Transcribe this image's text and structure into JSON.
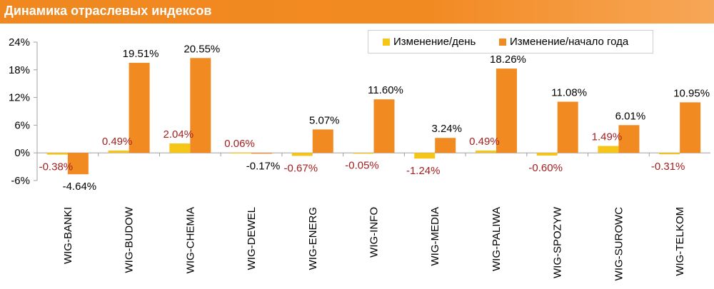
{
  "header": {
    "title": "Динамика отраслевых индексов"
  },
  "colors": {
    "daily": "#f5c518",
    "ytd": "#f28a22",
    "daily_label": "#a21f1f",
    "ytd_label": "#000000",
    "axis": "#a0a0a0"
  },
  "legend": {
    "daily": "Изменение/день",
    "ytd": "Изменение/начало года"
  },
  "chart_data": {
    "type": "bar",
    "categories": [
      "WIG-BANKI",
      "WIG-BUDOW",
      "WIG-CHEMIA",
      "WIG-DEWEL",
      "WIG-ENERG",
      "WIG-INFO",
      "WIG-MEDIA",
      "WIG-PALIWA",
      "WIG-SPOZYW",
      "WIG-SUROWC",
      "WIG-TELKOM"
    ],
    "series": [
      {
        "name": "Изменение/день",
        "values": [
          -0.38,
          0.49,
          2.04,
          0.06,
          -0.67,
          -0.05,
          -1.24,
          0.49,
          -0.6,
          1.49,
          -0.31
        ],
        "labels": [
          "-0.38%",
          "0.49%",
          "2.04%",
          "0.06%",
          "-0.67%",
          "-0.05%",
          "-1.24%",
          "0.49%",
          "-0.60%",
          "1.49%",
          "-0.31%"
        ]
      },
      {
        "name": "Изменение/начало года",
        "values": [
          -4.64,
          19.51,
          20.55,
          -0.17,
          5.07,
          11.6,
          3.24,
          18.26,
          11.08,
          6.01,
          10.95
        ],
        "labels": [
          "-4.64%",
          "19.51%",
          "20.55%",
          "-0.17%",
          "5.07%",
          "11.60%",
          "3.24%",
          "18.26%",
          "11.08%",
          "6.01%",
          "10.95%"
        ]
      }
    ],
    "ylim": [
      -6,
      24
    ],
    "yticks": [
      -6,
      0,
      6,
      12,
      18,
      24
    ],
    "ytick_labels": [
      "-6%",
      "0%",
      "6%",
      "12%",
      "18%",
      "24%"
    ],
    "legend_position": "top-right",
    "grid": false
  }
}
